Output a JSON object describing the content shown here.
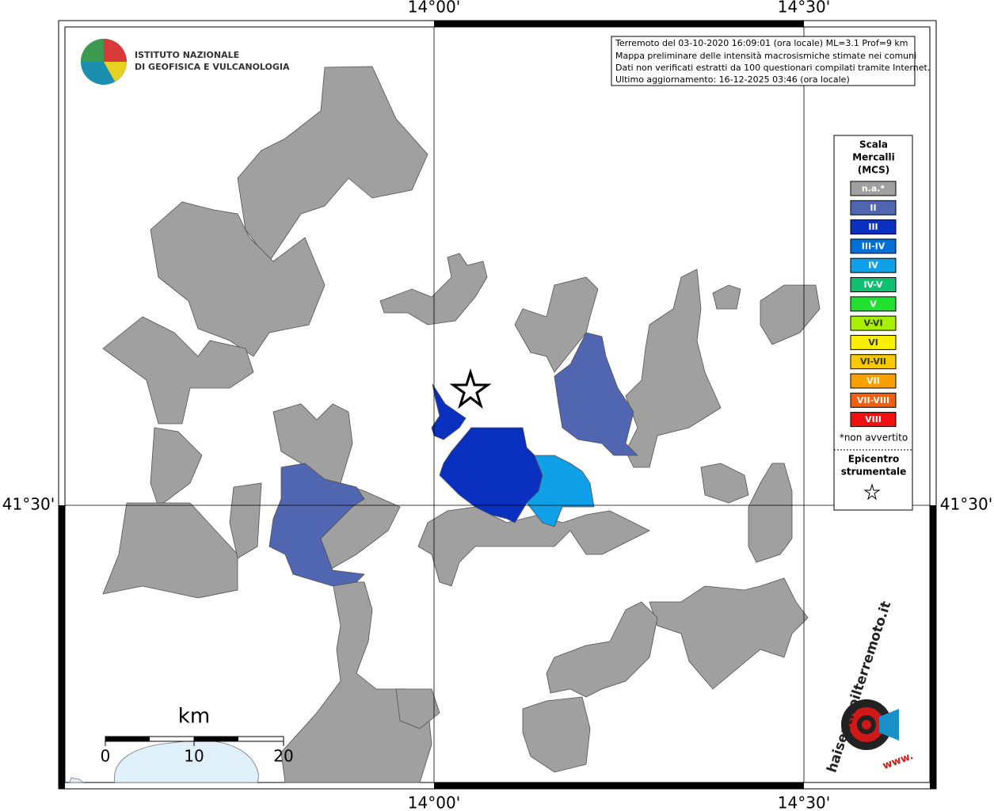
{
  "map": {
    "axis_labels": {
      "top": [
        "14°00'",
        "14°30'"
      ],
      "bottom": [
        "14°00'",
        "14°30'"
      ],
      "left": "41°30'",
      "right": "41°30'"
    },
    "logo": {
      "lines": [
        "ISTITUTO NAZIONALE",
        "DI GEOFISICA E VULCANOLOGIA"
      ]
    },
    "info_box": {
      "lines": [
        "Terremoto del 03-10-2020 16:09:01 (ora locale) ML=3.1 Prof=9 km",
        "Mappa preliminare delle intensità macrosismiche stimate nei comuni",
        "Dati non verificati estratti da 100 questionari compilati tramite Internet.",
        "Ultimo aggiornamento: 16-12-2025 03:46 (ora locale)"
      ]
    },
    "legend": {
      "title": [
        "Scala",
        "Mercalli",
        "(MCS)"
      ],
      "items": [
        {
          "label": "n.a.*",
          "color": "#a0a0a0"
        },
        {
          "label": "II",
          "color": "#5066b0"
        },
        {
          "label": "III",
          "color": "#0a30c0"
        },
        {
          "label": "III-IV",
          "color": "#0070d8"
        },
        {
          "label": "IV",
          "color": "#10a0e8"
        },
        {
          "label": "IV-V",
          "color": "#10c070"
        },
        {
          "label": "V",
          "color": "#20e030"
        },
        {
          "label": "V-VI",
          "color": "#a8f000"
        },
        {
          "label": "VI",
          "color": "#f8f000"
        },
        {
          "label": "VI-VII",
          "color": "#f8c800"
        },
        {
          "label": "VII",
          "color": "#f8a000"
        },
        {
          "label": "VII-VIII",
          "color": "#f06010"
        },
        {
          "label": "VIII",
          "color": "#f01010"
        }
      ],
      "note": "*non avvertito",
      "epicenter_title": [
        "Epicentro",
        "strumentale"
      ]
    },
    "scale_bar": {
      "unit": "km",
      "ticks": [
        0,
        10,
        20
      ]
    },
    "badge": {
      "site": "haisentitoilterremoto.it",
      "prefix": "www."
    }
  }
}
